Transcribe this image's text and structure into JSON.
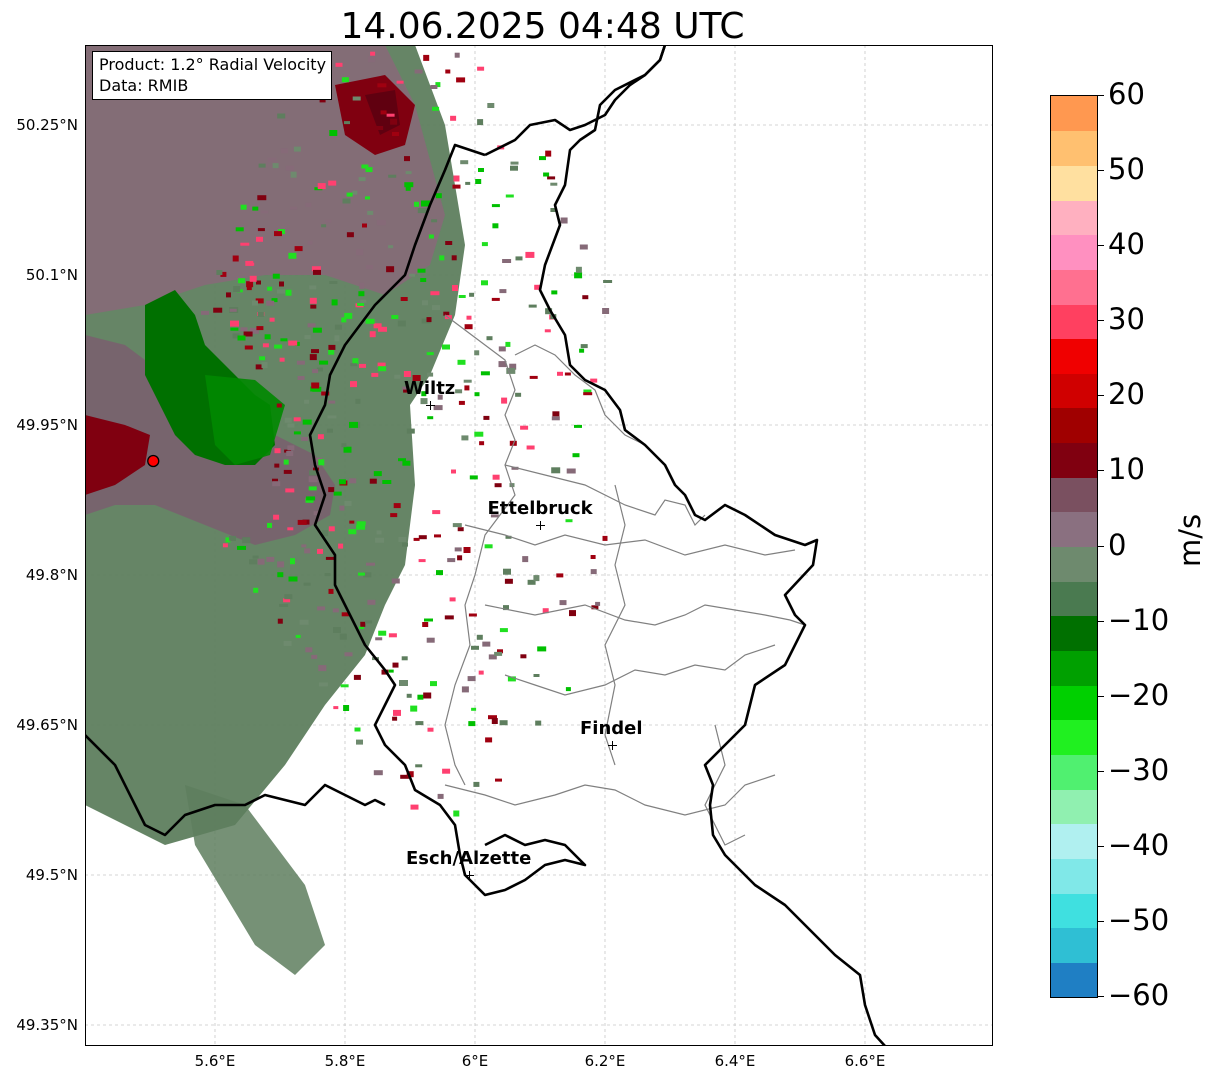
{
  "title": "14.06.2025 04:48 UTC",
  "info_box": {
    "product": "Product: 1.2° Radial Velocity",
    "data_source": "Data: RMIB"
  },
  "axes": {
    "y_ticks": [
      "50.25°N",
      "50.1°N",
      "49.95°N",
      "49.8°N",
      "49.65°N",
      "49.5°N",
      "49.35°N"
    ],
    "x_ticks": [
      "5.6°E",
      "5.8°E",
      "6°E",
      "6.2°E",
      "6.4°E",
      "6.6°E"
    ]
  },
  "cities": [
    {
      "name": "Wiltz",
      "lon": 5.93,
      "lat": 49.97
    },
    {
      "name": "Ettelbruck",
      "lon": 6.1,
      "lat": 49.85
    },
    {
      "name": "Findel",
      "lon": 6.21,
      "lat": 49.63
    },
    {
      "name": "Esch/Alzette",
      "lon": 5.99,
      "lat": 49.5
    }
  ],
  "radar_site": {
    "lon": 5.505,
    "lat": 49.914,
    "color": "#ff0000"
  },
  "colorbar": {
    "unit": "m/s",
    "min": -60,
    "max": 60,
    "tick_labels": [
      "60",
      "50",
      "40",
      "30",
      "20",
      "10",
      "0",
      "−10",
      "−20",
      "−30",
      "−40",
      "−50",
      "−60"
    ],
    "colors": [
      "#1f7fc4",
      "#2fbfd4",
      "#3fe0e0",
      "#80e8e8",
      "#b0f0f0",
      "#90f0b0",
      "#50f070",
      "#20f020",
      "#00d000",
      "#00a000",
      "#007000",
      "#4a7a50",
      "#6e8a6e",
      "#8a7080",
      "#7a5060",
      "#800010",
      "#a00000",
      "#d00000",
      "#f00000",
      "#ff4060",
      "#ff7090",
      "#ff90c0",
      "#ffb0c0",
      "#ffe0a0",
      "#ffc070",
      "#ff9850"
    ]
  },
  "legend_colors": {
    "receding": "#800010",
    "approaching": "#007000",
    "near_zero_neg": "#5e7e5e",
    "near_zero_pos": "#866a78",
    "border_country": "#000000",
    "border_canton": "#808080"
  }
}
